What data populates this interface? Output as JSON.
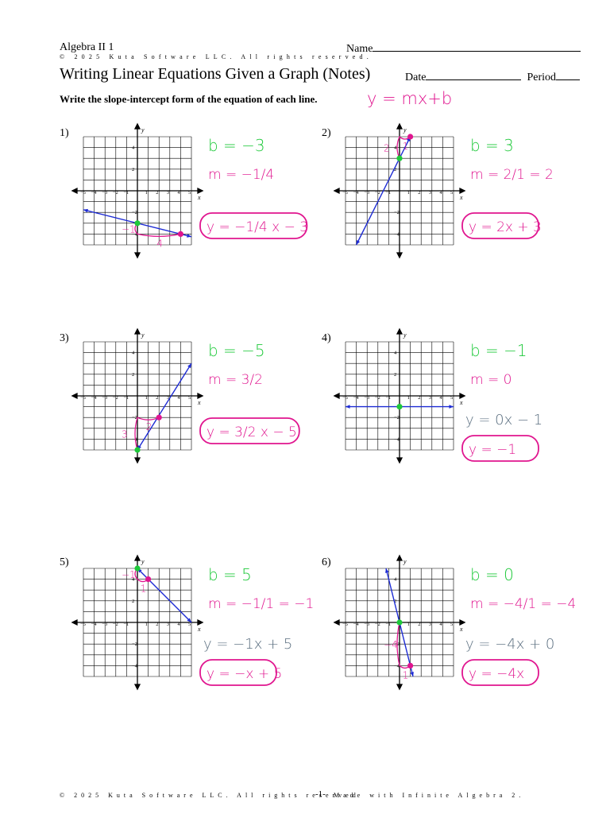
{
  "header": {
    "course": "Algebra II 1",
    "copyright": "© 2025 Kuta Software LLC. All rights reserved.",
    "name_label": "Name",
    "title": "Writing Linear Equations Given a Graph (Notes)",
    "date_label": "Date",
    "period_label": "Period",
    "instructions": "Write the slope-intercept form of the equation of each line.",
    "instruction_annotation": "y = mx+b"
  },
  "colors": {
    "line": "#1d2bd4",
    "pink": "#e0158f",
    "green": "#1ec93a",
    "gray": "#5b6f80",
    "grid": "#000000"
  },
  "axis": {
    "x_label": "x",
    "y_label": "y",
    "x_ticks": [
      "−5",
      "−4",
      "−3",
      "−2",
      "−1",
      "1",
      "2",
      "3",
      "4",
      "5"
    ],
    "y_ticks": [
      "4",
      "2",
      "−2",
      "−4"
    ]
  },
  "problems": [
    {
      "number": "1)",
      "line": {
        "p1": [
          -5,
          -1.75
        ],
        "p2": [
          5,
          -4.25
        ]
      },
      "points": [
        {
          "xy": [
            0,
            -3
          ],
          "color": "green"
        },
        {
          "xy": [
            4,
            -4
          ],
          "color": "pink"
        }
      ],
      "rise_label": "−1",
      "run_label": "4",
      "b": "b = −3",
      "m": "m = −1/4",
      "answer": "y = −1/4 x − 3"
    },
    {
      "number": "2)",
      "line": {
        "p1": [
          -4,
          -5
        ],
        "p2": [
          1,
          5
        ]
      },
      "points": [
        {
          "xy": [
            0,
            3
          ],
          "color": "green"
        },
        {
          "xy": [
            1,
            5
          ],
          "color": "pink"
        }
      ],
      "rise_label": "2",
      "run_label": "1",
      "b": "b = 3",
      "m": "m = 2/1 = 2",
      "answer": "y = 2x + 3"
    },
    {
      "number": "3)",
      "line": {
        "p1": [
          0,
          -5
        ],
        "p2": [
          5,
          3
        ]
      },
      "points": [
        {
          "xy": [
            0,
            -5
          ],
          "color": "green"
        },
        {
          "xy": [
            2,
            -2
          ],
          "color": "pink"
        }
      ],
      "rise_label": "3",
      "run_label": "2",
      "b": "b = −5",
      "m": "m = 3/2",
      "answer": "y = 3/2 x − 5"
    },
    {
      "number": "4)",
      "line": {
        "p1": [
          -5,
          -1
        ],
        "p2": [
          5,
          -1
        ]
      },
      "points": [
        {
          "xy": [
            0,
            -1
          ],
          "color": "green"
        }
      ],
      "rise_label": "",
      "run_label": "",
      "b": "b = −1",
      "m": "m = 0",
      "work": "y = 0x − 1",
      "answer": "y = −1"
    },
    {
      "number": "5)",
      "line": {
        "p1": [
          0,
          5
        ],
        "p2": [
          5,
          0
        ]
      },
      "points": [
        {
          "xy": [
            0,
            5
          ],
          "color": "green"
        },
        {
          "xy": [
            1,
            4
          ],
          "color": "pink"
        }
      ],
      "rise_label": "−1",
      "run_label": "1",
      "b": "b = 5",
      "m": "m = −1/1 = −1",
      "work": "y = −1x + 5",
      "answer": "y = −x + 5"
    },
    {
      "number": "6)",
      "line": {
        "p1": [
          -1.25,
          5
        ],
        "p2": [
          1.25,
          -5
        ]
      },
      "points": [
        {
          "xy": [
            0,
            0
          ],
          "color": "green"
        },
        {
          "xy": [
            1,
            -4
          ],
          "color": "pink"
        }
      ],
      "rise_label": "−4",
      "run_label": "1",
      "b": "b = 0",
      "m": "m = −4/1 = −4",
      "work": "y = −4x + 0",
      "answer": "y = −4x"
    }
  ],
  "footer": {
    "copyright": "© 2025 Kuta Software LLC. All rights reserved",
    "made_with": "Made with Infinite Algebra 2.",
    "page": "-1-"
  }
}
